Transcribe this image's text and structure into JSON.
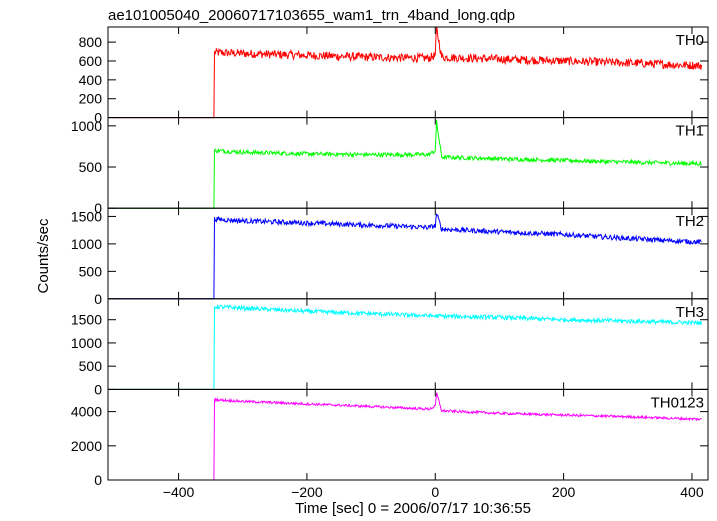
{
  "chart_data": {
    "type": "line",
    "title": "ae101005040_20060717103655_wam1_trn_4band_long.qdp",
    "xlabel": "Time [sec] 0 = 2006/07/17 10:36:55",
    "ylabel": "Counts/sec",
    "xlim": [
      -510,
      425
    ],
    "x_ticks": [
      -400,
      -200,
      0,
      200,
      400
    ],
    "grid": false,
    "panels": [
      {
        "name": "TH0",
        "color": "#ff0000",
        "ylim": [
          0,
          960
        ],
        "y_ticks": [
          0,
          200,
          400,
          600,
          800
        ],
        "x": [
          -500,
          -345,
          -344,
          -300,
          -200,
          -100,
          -10,
          0,
          2,
          10,
          100,
          200,
          300,
          415
        ],
        "y": [
          0,
          0,
          690,
          680,
          660,
          640,
          630,
          660,
          950,
          640,
          620,
          600,
          580,
          550
        ],
        "noise": 45
      },
      {
        "name": "TH1",
        "color": "#00ff00",
        "ylim": [
          0,
          1100
        ],
        "y_ticks": [
          0,
          500,
          1000
        ],
        "x": [
          -500,
          -345,
          -344,
          -300,
          -200,
          -100,
          -10,
          0,
          2,
          10,
          100,
          200,
          300,
          415
        ],
        "y": [
          0,
          0,
          700,
          680,
          660,
          650,
          650,
          700,
          1050,
          620,
          600,
          580,
          560,
          540
        ],
        "noise": 25
      },
      {
        "name": "TH2",
        "color": "#0000ff",
        "ylim": [
          0,
          1650
        ],
        "y_ticks": [
          0,
          500,
          1000,
          1500
        ],
        "x": [
          -500,
          -345,
          -344,
          -300,
          -200,
          -100,
          -10,
          0,
          2,
          10,
          100,
          200,
          300,
          415
        ],
        "y": [
          0,
          0,
          1450,
          1420,
          1380,
          1340,
          1300,
          1330,
          1550,
          1270,
          1220,
          1170,
          1100,
          1030
        ],
        "noise": 45
      },
      {
        "name": "TH3",
        "color": "#00ffff",
        "ylim": [
          0,
          1950
        ],
        "y_ticks": [
          0,
          500,
          1000,
          1500
        ],
        "x": [
          -500,
          -345,
          -344,
          -300,
          -200,
          -100,
          0,
          100,
          200,
          300,
          415
        ],
        "y": [
          0,
          0,
          1780,
          1750,
          1680,
          1630,
          1580,
          1550,
          1500,
          1470,
          1430
        ],
        "noise": 45
      },
      {
        "name": "TH0123",
        "color": "#ff00ff",
        "ylim": [
          0,
          5300
        ],
        "y_ticks": [
          0,
          2000,
          4000
        ],
        "x": [
          -500,
          -345,
          -344,
          -300,
          -200,
          -100,
          -10,
          0,
          2,
          10,
          100,
          200,
          300,
          415
        ],
        "y": [
          0,
          0,
          4700,
          4600,
          4450,
          4300,
          4150,
          4300,
          5100,
          4050,
          3900,
          3800,
          3700,
          3550
        ],
        "noise": 70
      }
    ]
  }
}
